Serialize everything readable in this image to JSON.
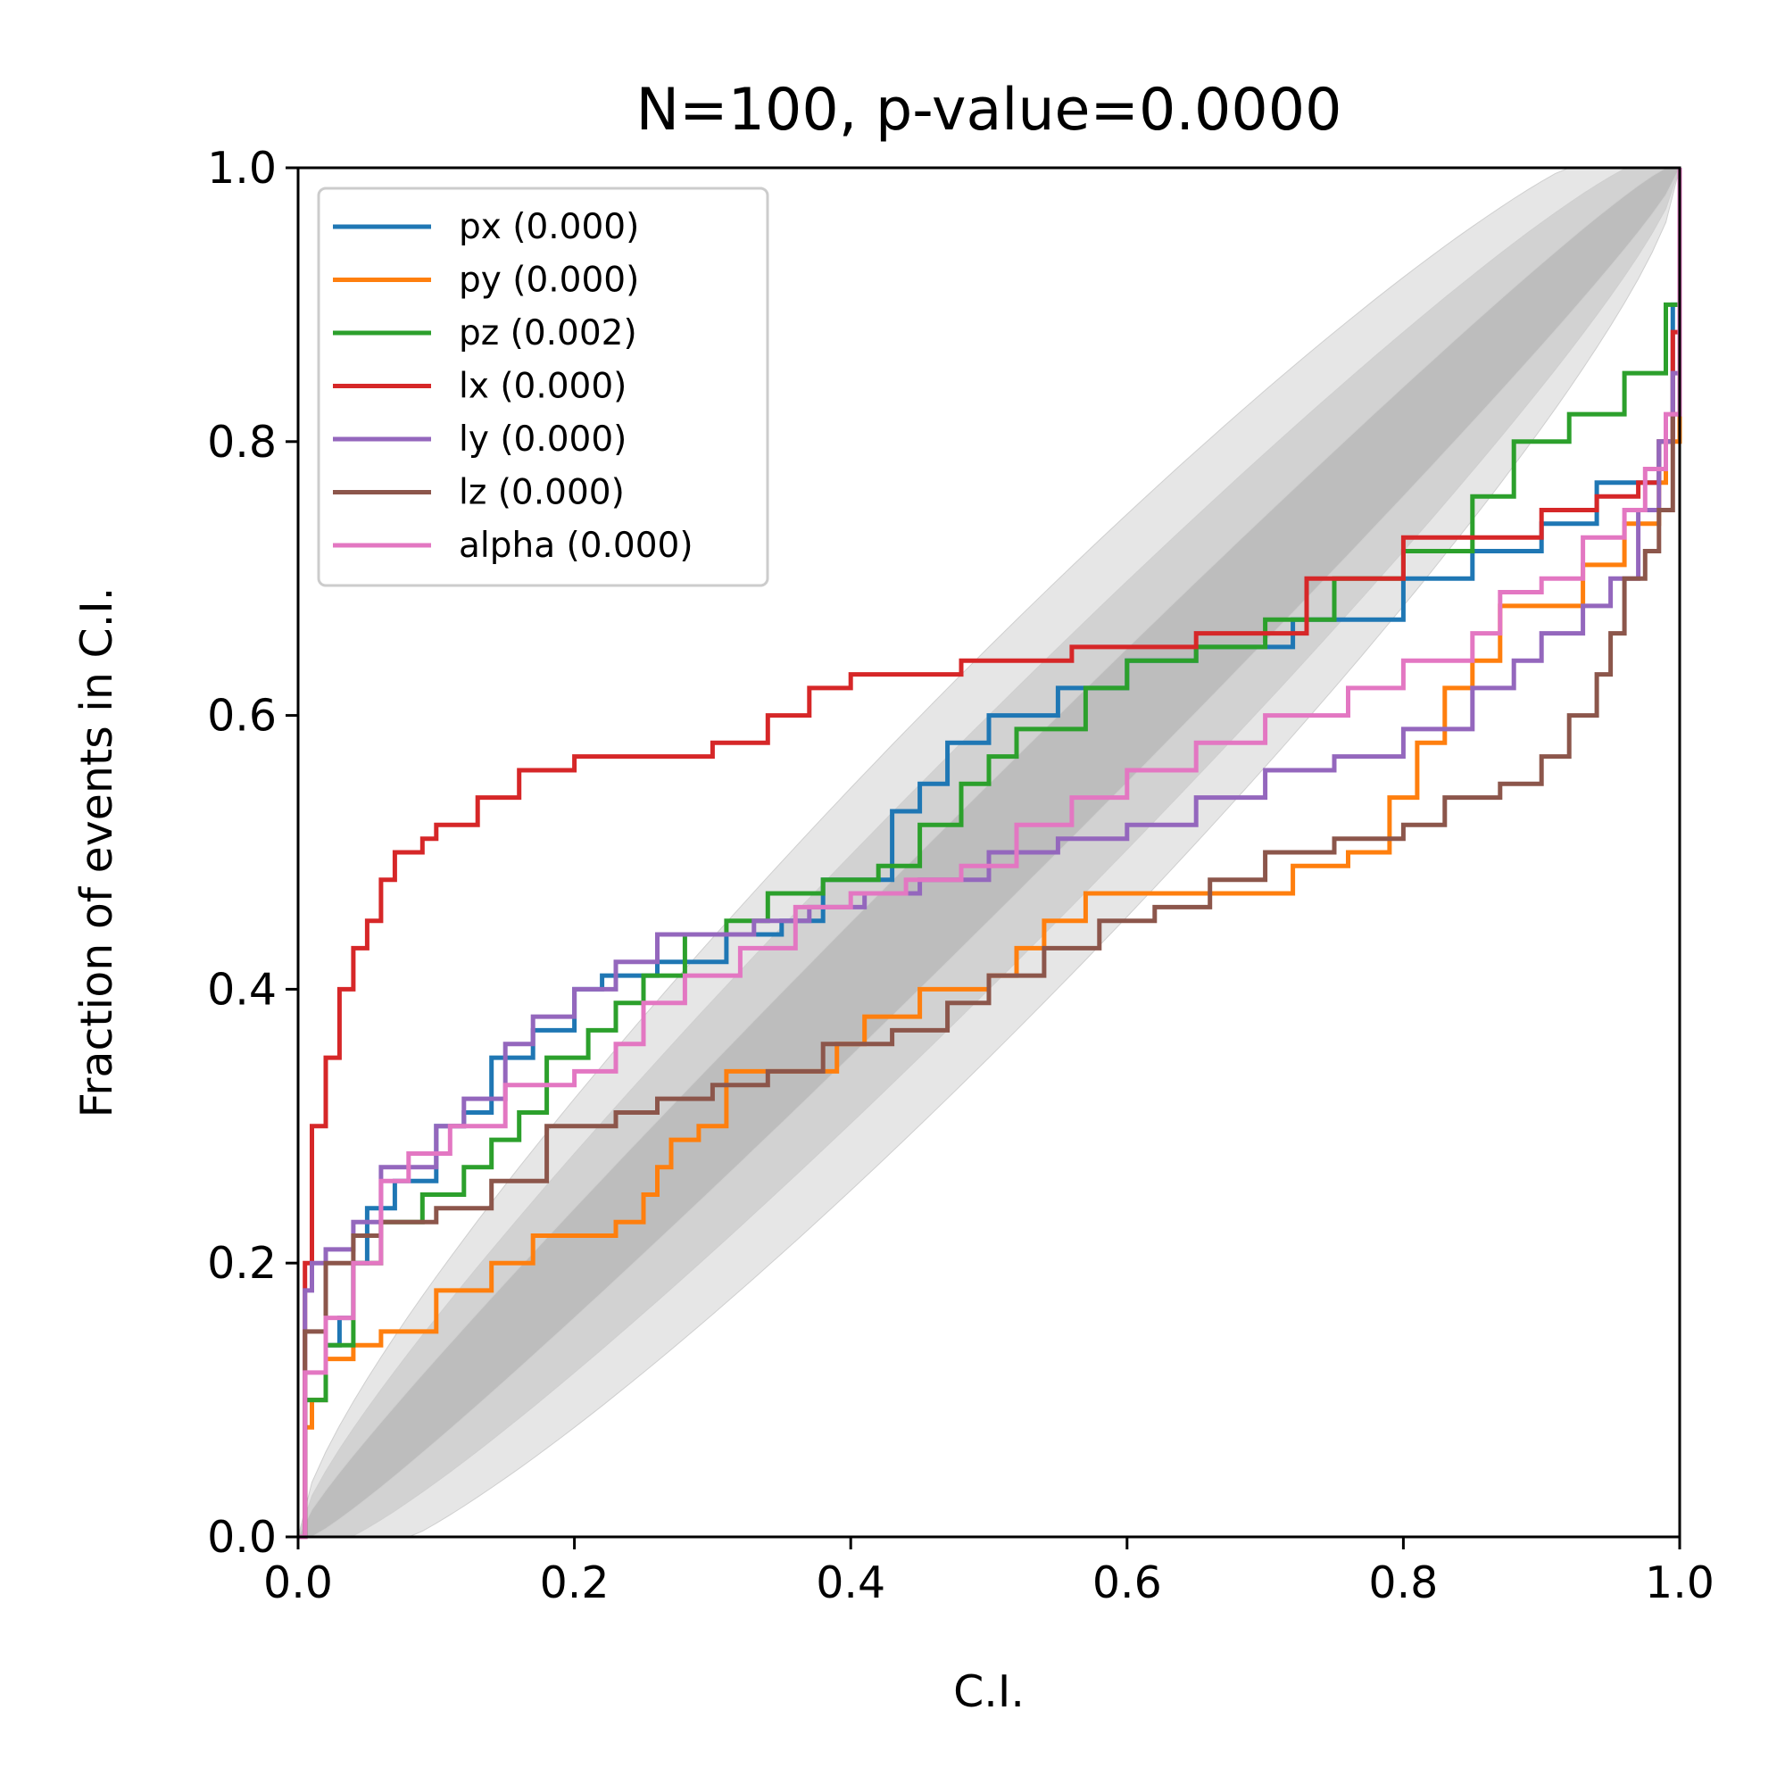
{
  "chart_data": {
    "type": "line",
    "title": "N=100, p-value=0.0000",
    "xlabel": "C.I.",
    "ylabel": "Fraction of events in C.I.",
    "xlim": [
      0,
      1
    ],
    "ylim": [
      0,
      1
    ],
    "xticks": [
      "0.0",
      "0.2",
      "0.4",
      "0.6",
      "0.8",
      "1.0"
    ],
    "yticks": [
      "0.0",
      "0.2",
      "0.4",
      "0.6",
      "0.8",
      "1.0"
    ],
    "grid": false,
    "legend_position": "top-left",
    "confidence_bands": {
      "sigma_levels": [
        1,
        2,
        3
      ],
      "fill_colors": [
        "#bdbdbd",
        "#d2d2d2",
        "#e6e6e6"
      ]
    },
    "series": [
      {
        "name": "px (0.000)",
        "color": "#1f77b4",
        "points": [
          [
            0,
            0
          ],
          [
            0.005,
            0.1
          ],
          [
            0.02,
            0.14
          ],
          [
            0.03,
            0.16
          ],
          [
            0.04,
            0.2
          ],
          [
            0.05,
            0.24
          ],
          [
            0.07,
            0.26
          ],
          [
            0.1,
            0.3
          ],
          [
            0.12,
            0.31
          ],
          [
            0.14,
            0.35
          ],
          [
            0.17,
            0.37
          ],
          [
            0.2,
            0.4
          ],
          [
            0.22,
            0.41
          ],
          [
            0.26,
            0.42
          ],
          [
            0.31,
            0.44
          ],
          [
            0.35,
            0.45
          ],
          [
            0.38,
            0.48
          ],
          [
            0.41,
            0.48
          ],
          [
            0.43,
            0.53
          ],
          [
            0.45,
            0.55
          ],
          [
            0.47,
            0.58
          ],
          [
            0.5,
            0.6
          ],
          [
            0.55,
            0.62
          ],
          [
            0.6,
            0.64
          ],
          [
            0.65,
            0.65
          ],
          [
            0.72,
            0.67
          ],
          [
            0.8,
            0.7
          ],
          [
            0.85,
            0.72
          ],
          [
            0.9,
            0.74
          ],
          [
            0.94,
            0.77
          ],
          [
            0.97,
            0.77
          ],
          [
            0.985,
            0.8
          ],
          [
            0.995,
            0.9
          ],
          [
            1,
            1
          ]
        ]
      },
      {
        "name": "py (0.000)",
        "color": "#ff7f0e",
        "points": [
          [
            0,
            0
          ],
          [
            0.005,
            0.08
          ],
          [
            0.01,
            0.1
          ],
          [
            0.02,
            0.13
          ],
          [
            0.04,
            0.14
          ],
          [
            0.06,
            0.15
          ],
          [
            0.1,
            0.18
          ],
          [
            0.12,
            0.18
          ],
          [
            0.14,
            0.2
          ],
          [
            0.17,
            0.22
          ],
          [
            0.23,
            0.23
          ],
          [
            0.25,
            0.25
          ],
          [
            0.26,
            0.27
          ],
          [
            0.27,
            0.29
          ],
          [
            0.29,
            0.3
          ],
          [
            0.31,
            0.34
          ],
          [
            0.36,
            0.34
          ],
          [
            0.39,
            0.36
          ],
          [
            0.41,
            0.38
          ],
          [
            0.45,
            0.4
          ],
          [
            0.5,
            0.41
          ],
          [
            0.52,
            0.43
          ],
          [
            0.54,
            0.45
          ],
          [
            0.57,
            0.47
          ],
          [
            0.66,
            0.47
          ],
          [
            0.72,
            0.49
          ],
          [
            0.76,
            0.5
          ],
          [
            0.79,
            0.54
          ],
          [
            0.81,
            0.58
          ],
          [
            0.83,
            0.62
          ],
          [
            0.85,
            0.64
          ],
          [
            0.87,
            0.68
          ],
          [
            0.9,
            0.68
          ],
          [
            0.93,
            0.71
          ],
          [
            0.96,
            0.74
          ],
          [
            0.985,
            0.77
          ],
          [
            0.99,
            0.8
          ],
          [
            1,
            1
          ]
        ]
      },
      {
        "name": "pz (0.002)",
        "color": "#2ca02c",
        "points": [
          [
            0,
            0
          ],
          [
            0.005,
            0.1
          ],
          [
            0.02,
            0.14
          ],
          [
            0.04,
            0.2
          ],
          [
            0.06,
            0.23
          ],
          [
            0.09,
            0.25
          ],
          [
            0.12,
            0.27
          ],
          [
            0.14,
            0.29
          ],
          [
            0.16,
            0.31
          ],
          [
            0.18,
            0.35
          ],
          [
            0.21,
            0.37
          ],
          [
            0.23,
            0.39
          ],
          [
            0.25,
            0.41
          ],
          [
            0.28,
            0.44
          ],
          [
            0.31,
            0.45
          ],
          [
            0.34,
            0.47
          ],
          [
            0.38,
            0.48
          ],
          [
            0.42,
            0.49
          ],
          [
            0.45,
            0.52
          ],
          [
            0.48,
            0.55
          ],
          [
            0.5,
            0.57
          ],
          [
            0.52,
            0.59
          ],
          [
            0.57,
            0.62
          ],
          [
            0.6,
            0.64
          ],
          [
            0.65,
            0.65
          ],
          [
            0.7,
            0.67
          ],
          [
            0.75,
            0.7
          ],
          [
            0.8,
            0.72
          ],
          [
            0.85,
            0.76
          ],
          [
            0.88,
            0.8
          ],
          [
            0.92,
            0.82
          ],
          [
            0.96,
            0.85
          ],
          [
            0.98,
            0.85
          ],
          [
            0.99,
            0.9
          ],
          [
            1,
            1
          ]
        ]
      },
      {
        "name": "lx (0.000)",
        "color": "#d62728",
        "points": [
          [
            0,
            0
          ],
          [
            0.005,
            0.2
          ],
          [
            0.01,
            0.3
          ],
          [
            0.02,
            0.35
          ],
          [
            0.03,
            0.4
          ],
          [
            0.04,
            0.43
          ],
          [
            0.05,
            0.45
          ],
          [
            0.06,
            0.48
          ],
          [
            0.07,
            0.5
          ],
          [
            0.09,
            0.51
          ],
          [
            0.1,
            0.52
          ],
          [
            0.13,
            0.54
          ],
          [
            0.16,
            0.56
          ],
          [
            0.2,
            0.57
          ],
          [
            0.3,
            0.58
          ],
          [
            0.34,
            0.6
          ],
          [
            0.37,
            0.62
          ],
          [
            0.4,
            0.63
          ],
          [
            0.48,
            0.64
          ],
          [
            0.56,
            0.65
          ],
          [
            0.65,
            0.66
          ],
          [
            0.73,
            0.7
          ],
          [
            0.8,
            0.73
          ],
          [
            0.9,
            0.75
          ],
          [
            0.94,
            0.76
          ],
          [
            0.97,
            0.77
          ],
          [
            0.985,
            0.8
          ],
          [
            0.995,
            0.88
          ],
          [
            1,
            1
          ]
        ]
      },
      {
        "name": "ly (0.000)",
        "color": "#9467bd",
        "points": [
          [
            0,
            0
          ],
          [
            0.005,
            0.18
          ],
          [
            0.01,
            0.2
          ],
          [
            0.02,
            0.21
          ],
          [
            0.04,
            0.23
          ],
          [
            0.06,
            0.27
          ],
          [
            0.1,
            0.3
          ],
          [
            0.12,
            0.32
          ],
          [
            0.15,
            0.36
          ],
          [
            0.17,
            0.38
          ],
          [
            0.2,
            0.4
          ],
          [
            0.23,
            0.42
          ],
          [
            0.26,
            0.44
          ],
          [
            0.3,
            0.44
          ],
          [
            0.33,
            0.45
          ],
          [
            0.37,
            0.46
          ],
          [
            0.41,
            0.47
          ],
          [
            0.45,
            0.48
          ],
          [
            0.5,
            0.5
          ],
          [
            0.55,
            0.51
          ],
          [
            0.6,
            0.52
          ],
          [
            0.65,
            0.54
          ],
          [
            0.7,
            0.56
          ],
          [
            0.75,
            0.57
          ],
          [
            0.8,
            0.59
          ],
          [
            0.85,
            0.62
          ],
          [
            0.88,
            0.64
          ],
          [
            0.9,
            0.66
          ],
          [
            0.93,
            0.68
          ],
          [
            0.95,
            0.7
          ],
          [
            0.97,
            0.75
          ],
          [
            0.985,
            0.8
          ],
          [
            0.995,
            0.85
          ],
          [
            1,
            1
          ]
        ]
      },
      {
        "name": "lz (0.000)",
        "color": "#8c564b",
        "points": [
          [
            0,
            0
          ],
          [
            0.005,
            0.15
          ],
          [
            0.02,
            0.2
          ],
          [
            0.04,
            0.22
          ],
          [
            0.06,
            0.23
          ],
          [
            0.1,
            0.24
          ],
          [
            0.14,
            0.26
          ],
          [
            0.18,
            0.3
          ],
          [
            0.23,
            0.31
          ],
          [
            0.26,
            0.32
          ],
          [
            0.3,
            0.33
          ],
          [
            0.34,
            0.34
          ],
          [
            0.38,
            0.36
          ],
          [
            0.43,
            0.37
          ],
          [
            0.47,
            0.39
          ],
          [
            0.5,
            0.41
          ],
          [
            0.54,
            0.43
          ],
          [
            0.58,
            0.45
          ],
          [
            0.62,
            0.46
          ],
          [
            0.66,
            0.48
          ],
          [
            0.7,
            0.5
          ],
          [
            0.75,
            0.51
          ],
          [
            0.8,
            0.52
          ],
          [
            0.83,
            0.54
          ],
          [
            0.87,
            0.55
          ],
          [
            0.9,
            0.57
          ],
          [
            0.92,
            0.6
          ],
          [
            0.94,
            0.63
          ],
          [
            0.95,
            0.66
          ],
          [
            0.96,
            0.7
          ],
          [
            0.975,
            0.72
          ],
          [
            0.985,
            0.75
          ],
          [
            0.995,
            0.82
          ],
          [
            1,
            1
          ]
        ]
      },
      {
        "name": "alpha (0.000)",
        "color": "#e377c2",
        "points": [
          [
            0,
            0
          ],
          [
            0.005,
            0.12
          ],
          [
            0.02,
            0.16
          ],
          [
            0.04,
            0.2
          ],
          [
            0.06,
            0.26
          ],
          [
            0.08,
            0.28
          ],
          [
            0.11,
            0.3
          ],
          [
            0.15,
            0.33
          ],
          [
            0.2,
            0.34
          ],
          [
            0.23,
            0.36
          ],
          [
            0.25,
            0.39
          ],
          [
            0.28,
            0.41
          ],
          [
            0.32,
            0.43
          ],
          [
            0.36,
            0.46
          ],
          [
            0.4,
            0.47
          ],
          [
            0.44,
            0.48
          ],
          [
            0.48,
            0.49
          ],
          [
            0.52,
            0.52
          ],
          [
            0.56,
            0.54
          ],
          [
            0.6,
            0.56
          ],
          [
            0.65,
            0.58
          ],
          [
            0.7,
            0.6
          ],
          [
            0.76,
            0.62
          ],
          [
            0.8,
            0.64
          ],
          [
            0.85,
            0.66
          ],
          [
            0.87,
            0.69
          ],
          [
            0.9,
            0.7
          ],
          [
            0.93,
            0.73
          ],
          [
            0.96,
            0.75
          ],
          [
            0.975,
            0.78
          ],
          [
            0.99,
            0.82
          ],
          [
            1,
            1
          ]
        ]
      }
    ]
  }
}
